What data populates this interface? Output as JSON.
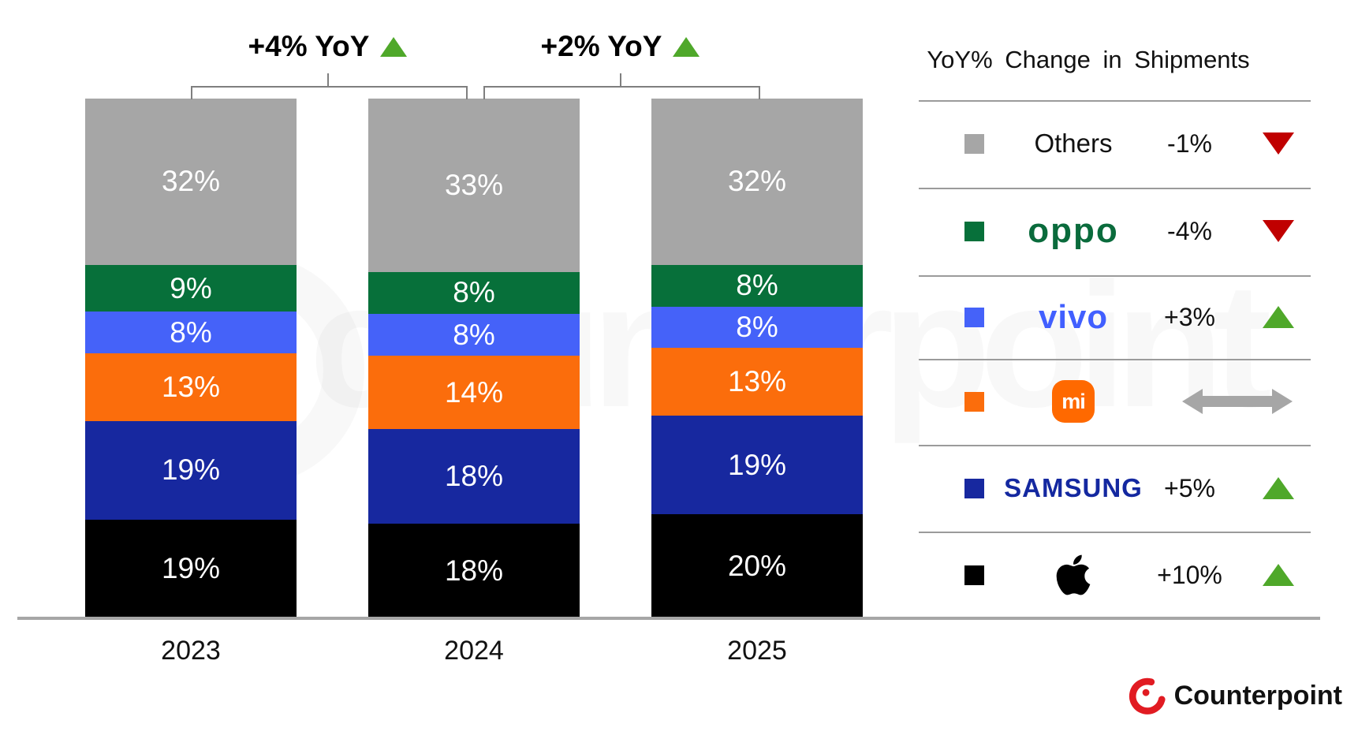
{
  "chart_data": {
    "type": "bar",
    "stacked": true,
    "unit": "%",
    "categories": [
      "2023",
      "2024",
      "2025"
    ],
    "series": [
      {
        "name": "Apple",
        "color": "#000000",
        "values": [
          19,
          18,
          20
        ]
      },
      {
        "name": "Samsung",
        "color": "#17289f",
        "values": [
          19,
          18,
          19
        ]
      },
      {
        "name": "Xiaomi",
        "color": "#fb6d0c",
        "values": [
          13,
          14,
          13
        ]
      },
      {
        "name": "vivo",
        "color": "#4562f9",
        "values": [
          8,
          8,
          8
        ]
      },
      {
        "name": "OPPO",
        "color": "#07703a",
        "values": [
          9,
          8,
          8
        ]
      },
      {
        "name": "Others",
        "color": "#a6a6a6",
        "values": [
          32,
          33,
          32
        ]
      }
    ],
    "yoy_annotations": [
      {
        "label": "+4% YoY",
        "between": [
          "2023",
          "2024"
        ],
        "direction": "up"
      },
      {
        "label": "+2% YoY",
        "between": [
          "2024",
          "2025"
        ],
        "direction": "up"
      }
    ],
    "ylim": [
      0,
      100
    ],
    "grid": false,
    "legend_position": "right"
  },
  "legend": {
    "title": "YoY% Change in Shipments",
    "rows": [
      {
        "id": "others",
        "logo_text": "Others",
        "logo_color": "#111111",
        "swatch": "#a6a6a6",
        "change": "-1%",
        "direction": "down"
      },
      {
        "id": "oppo",
        "logo_text": "oppo",
        "logo_color": "#0a6b3c",
        "swatch": "#07703a",
        "change": "-4%",
        "direction": "down"
      },
      {
        "id": "vivo",
        "logo_text": "vivo",
        "logo_color": "#415fff",
        "swatch": "#4562f9",
        "change": "+3%",
        "direction": "up"
      },
      {
        "id": "xiaomi",
        "logo_text": "mi",
        "logo_color": "#ff6900",
        "swatch": "#fb6d0c",
        "change": "",
        "direction": "flat"
      },
      {
        "id": "samsung",
        "logo_text": "SAMSUNG",
        "logo_color": "#1428a0",
        "swatch": "#17289f",
        "change": "+5%",
        "direction": "up"
      },
      {
        "id": "apple",
        "logo_text": "",
        "logo_color": "#000000",
        "swatch": "#000000",
        "change": "+10%",
        "direction": "up"
      }
    ],
    "colors": {
      "up": "#4fa82a",
      "down": "#c00000",
      "flat": "#a6a6a6"
    }
  },
  "watermark": "counterpoint",
  "footer": {
    "brand": "Counterpoint",
    "brand_color": "#e11b22"
  }
}
